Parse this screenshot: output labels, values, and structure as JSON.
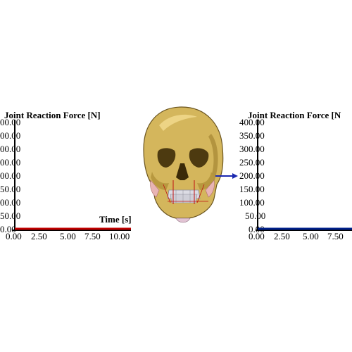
{
  "left_plot": {
    "title": "Joint Reaction Force [N]",
    "xlabel": "Time [s]",
    "y_ticks": [
      "00.00",
      "00.00",
      "00.00",
      "00.00",
      "00.00",
      "50.00",
      "00.00",
      "50.00",
      "0.00"
    ],
    "x_ticks": [
      "0.00",
      "2.50",
      "5.00",
      "7.50",
      "10.00"
    ],
    "line_color": "#c00000"
  },
  "right_plot": {
    "title": "Joint Reaction Force [N",
    "y_ticks": [
      "400.00",
      "350.00",
      "300.00",
      "250.00",
      "200.00",
      "150.00",
      "100.00",
      "50.00",
      "0.00"
    ],
    "x_ticks": [
      "0.00",
      "2.50",
      "5.00",
      "7.50"
    ],
    "line_color": "#00208a"
  },
  "skull": {
    "bone_color": "#d4b65c",
    "vector_color": "#1a28b0",
    "teeth_color": "#dcdce4"
  },
  "chart_data": [
    {
      "type": "line",
      "title": "Joint Reaction Force [N]",
      "xlabel": "Time [s]",
      "ylabel": "",
      "xlim": [
        0,
        10
      ],
      "ylim": [
        0,
        400
      ],
      "series": [
        {
          "values": [
            0,
            0,
            0,
            0,
            0
          ],
          "x": [
            0,
            2.5,
            5,
            7.5,
            10
          ],
          "color": "#c00000"
        }
      ],
      "grid": false
    },
    {
      "type": "line",
      "title": "Joint Reaction Force [N",
      "xlabel": "",
      "ylabel": "",
      "xlim": [
        0,
        10
      ],
      "ylim": [
        0,
        400
      ],
      "series": [
        {
          "values": [
            0,
            0,
            0,
            0,
            0
          ],
          "x": [
            0,
            2.5,
            5,
            7.5,
            10
          ],
          "color": "#00208a"
        }
      ],
      "grid": false
    }
  ]
}
